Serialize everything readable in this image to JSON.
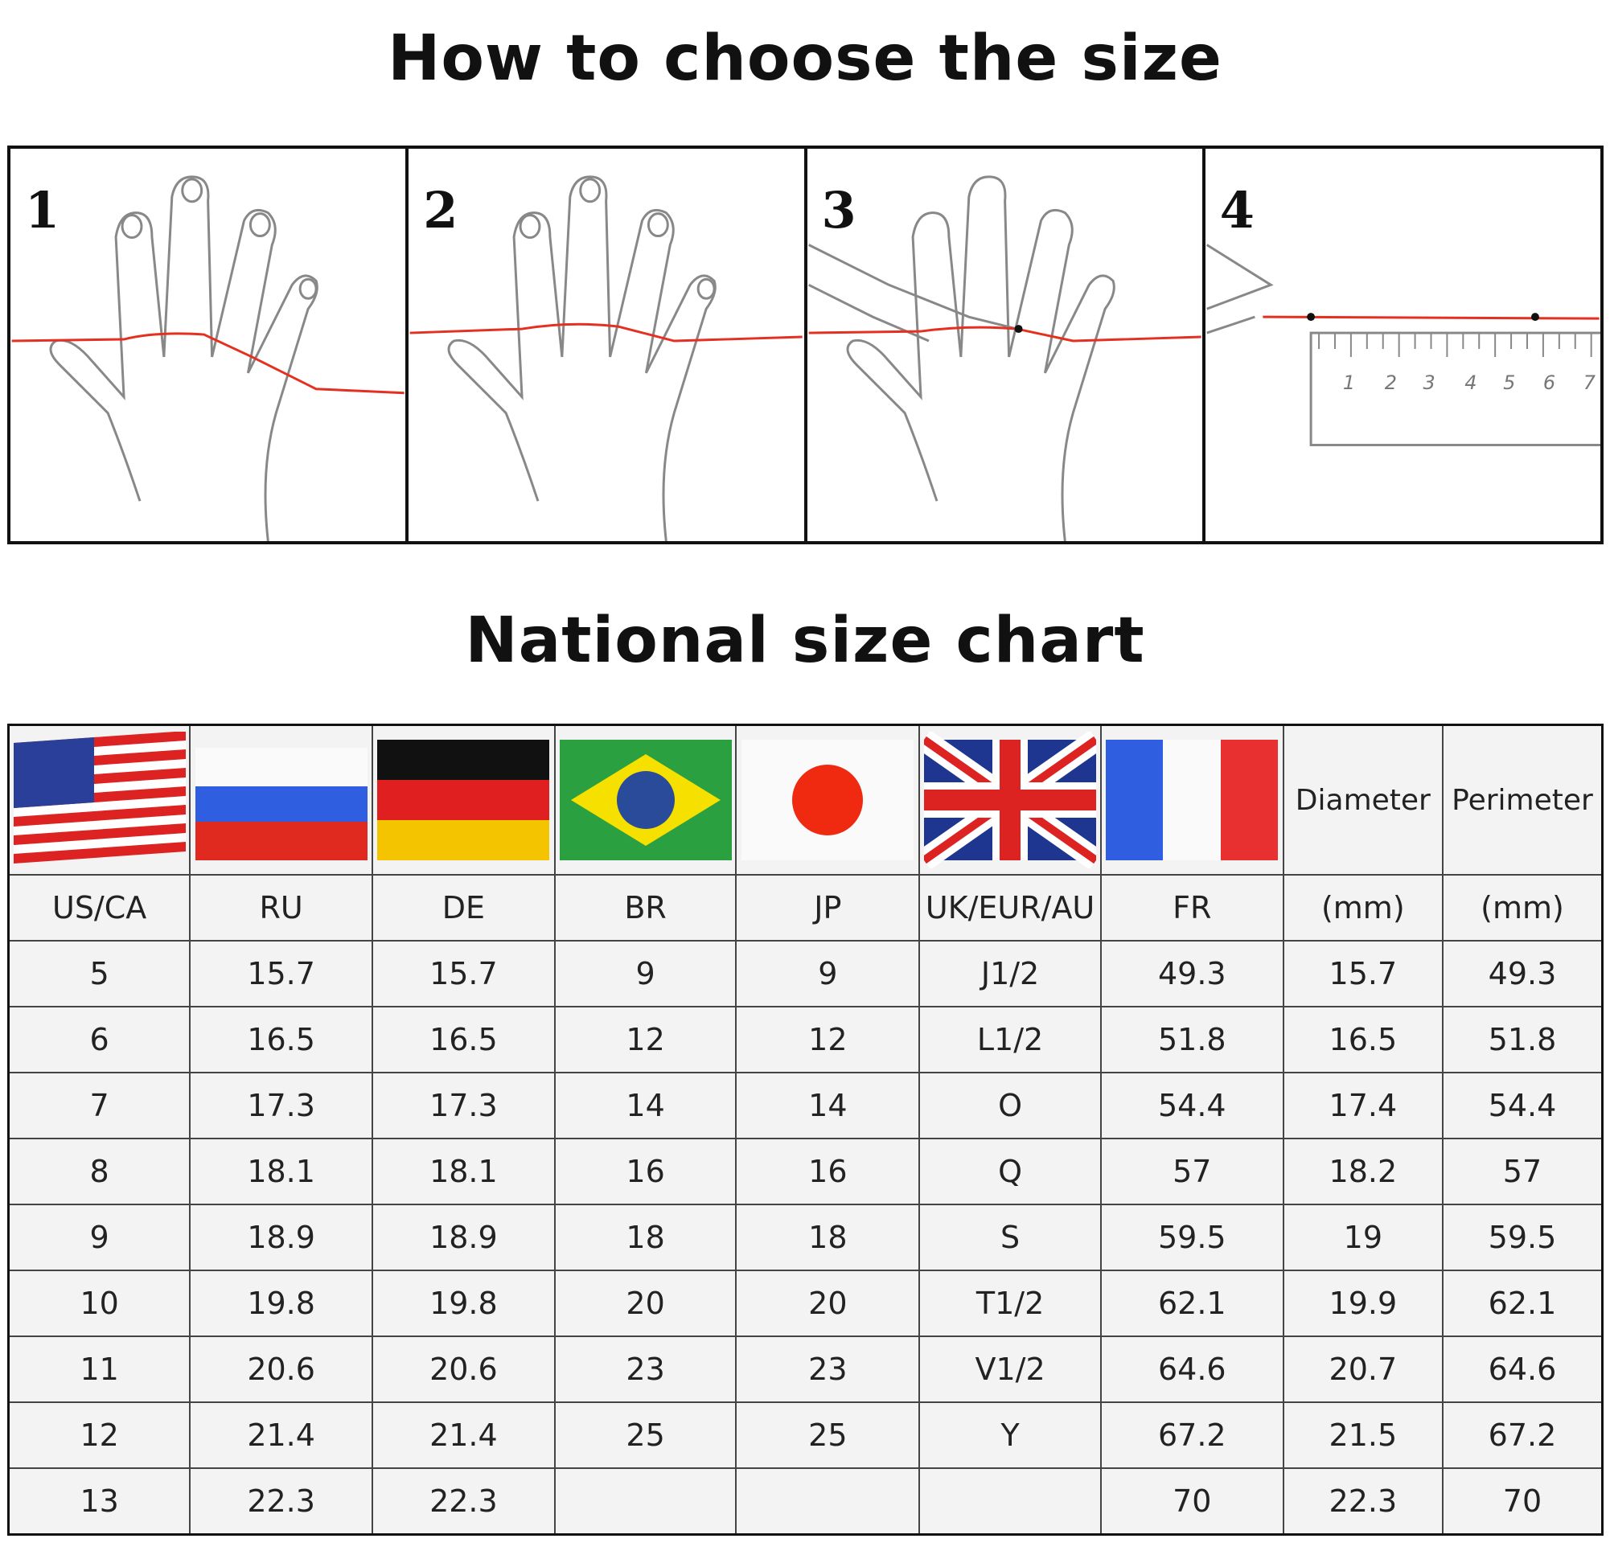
{
  "guide": {
    "title": "How to choose the size",
    "steps": [
      {
        "number": "1"
      },
      {
        "number": "2"
      },
      {
        "number": "3"
      },
      {
        "number": "4"
      }
    ],
    "ruler_marks": [
      "1",
      "2",
      "3",
      "4",
      "5",
      "6",
      "7"
    ]
  },
  "chart": {
    "title": "National size chart",
    "flags": [
      "us-flag",
      "russia-flag",
      "germany-flag",
      "brazil-flag",
      "japan-flag",
      "uk-flag",
      "france-flag"
    ],
    "flag_header_labels": [
      "Diameter",
      "Perimeter"
    ],
    "columns": [
      "US/CA",
      "RU",
      "DE",
      "BR",
      "JP",
      "UK/EUR/AU",
      "FR",
      "(mm)",
      "(mm)"
    ],
    "rows": [
      [
        "5",
        "15.7",
        "15.7",
        "9",
        "9",
        "J1/2",
        "49.3",
        "15.7",
        "49.3"
      ],
      [
        "6",
        "16.5",
        "16.5",
        "12",
        "12",
        "L1/2",
        "51.8",
        "16.5",
        "51.8"
      ],
      [
        "7",
        "17.3",
        "17.3",
        "14",
        "14",
        "O",
        "54.4",
        "17.4",
        "54.4"
      ],
      [
        "8",
        "18.1",
        "18.1",
        "16",
        "16",
        "Q",
        "57",
        "18.2",
        "57"
      ],
      [
        "9",
        "18.9",
        "18.9",
        "18",
        "18",
        "S",
        "59.5",
        "19",
        "59.5"
      ],
      [
        "10",
        "19.8",
        "19.8",
        "20",
        "20",
        "T1/2",
        "62.1",
        "19.9",
        "62.1"
      ],
      [
        "11",
        "20.6",
        "20.6",
        "23",
        "23",
        "V1/2",
        "64.6",
        "20.7",
        "64.6"
      ],
      [
        "12",
        "21.4",
        "21.4",
        "25",
        "25",
        "Y",
        "67.2",
        "21.5",
        "67.2"
      ],
      [
        "13",
        "22.3",
        "22.3",
        "",
        "",
        "",
        "70",
        "22.3",
        "70"
      ]
    ]
  },
  "colors": {
    "thread": "#e53020",
    "border": "#111111",
    "cell_bg": "#f3f3f3"
  }
}
